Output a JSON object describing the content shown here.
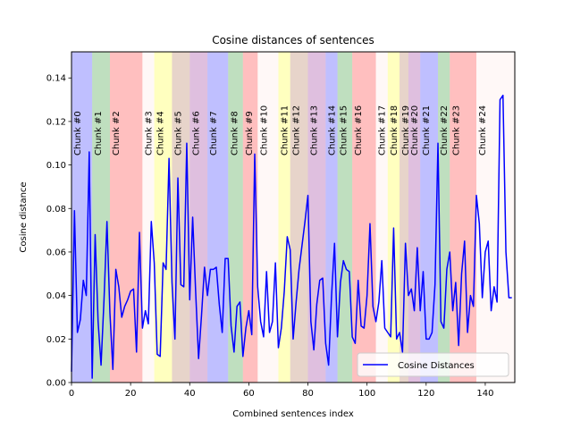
{
  "chart_data": {
    "type": "line",
    "title": "Cosine distances of sentences",
    "xlabel": "Combined sentences index",
    "ylabel": "Cosine distance",
    "xlim": [
      0,
      150
    ],
    "ylim": [
      0,
      0.152
    ],
    "x_ticks": [
      0,
      20,
      40,
      60,
      80,
      100,
      120,
      140
    ],
    "y_ticks": [
      0.0,
      0.02,
      0.04,
      0.06,
      0.08,
      0.1,
      0.12,
      0.14
    ],
    "x_tick_labels": [
      "0",
      "20",
      "40",
      "60",
      "80",
      "100",
      "120",
      "140"
    ],
    "y_tick_labels": [
      "0.00",
      "0.02",
      "0.04",
      "0.06",
      "0.08",
      "0.10",
      "0.12",
      "0.14"
    ],
    "grid": false,
    "legend": {
      "position": "lower-right",
      "entries": [
        "Cosine Distances"
      ]
    },
    "series": [
      {
        "name": "Cosine Distances",
        "color": "#0000ff",
        "values": [
          0.005,
          0.079,
          0.023,
          0.029,
          0.047,
          0.04,
          0.106,
          0.002,
          0.068,
          0.028,
          0.008,
          0.038,
          0.074,
          0.032,
          0.006,
          0.052,
          0.044,
          0.03,
          0.035,
          0.038,
          0.042,
          0.043,
          0.014,
          0.069,
          0.025,
          0.033,
          0.027,
          0.074,
          0.055,
          0.013,
          0.012,
          0.055,
          0.052,
          0.103,
          0.046,
          0.02,
          0.094,
          0.045,
          0.044,
          0.11,
          0.038,
          0.076,
          0.042,
          0.011,
          0.031,
          0.053,
          0.04,
          0.052,
          0.052,
          0.053,
          0.036,
          0.023,
          0.057,
          0.057,
          0.026,
          0.014,
          0.035,
          0.037,
          0.012,
          0.025,
          0.033,
          0.022,
          0.105,
          0.044,
          0.028,
          0.021,
          0.051,
          0.023,
          0.028,
          0.055,
          0.016,
          0.025,
          0.042,
          0.067,
          0.061,
          0.02,
          0.037,
          0.052,
          0.063,
          0.074,
          0.086,
          0.028,
          0.015,
          0.036,
          0.047,
          0.048,
          0.018,
          0.008,
          0.04,
          0.064,
          0.021,
          0.046,
          0.056,
          0.052,
          0.051,
          0.021,
          0.018,
          0.047,
          0.026,
          0.025,
          0.04,
          0.073,
          0.035,
          0.028,
          0.037,
          0.056,
          0.025,
          0.023,
          0.021,
          0.071,
          0.02,
          0.023,
          0.014,
          0.064,
          0.04,
          0.043,
          0.033,
          0.062,
          0.033,
          0.051,
          0.02,
          0.02,
          0.023,
          0.045,
          0.11,
          0.028,
          0.025,
          0.052,
          0.06,
          0.033,
          0.046,
          0.017,
          0.05,
          0.065,
          0.023,
          0.04,
          0.035,
          0.086,
          0.073,
          0.039,
          0.06,
          0.065,
          0.033,
          0.044,
          0.037,
          0.13,
          0.132,
          0.06,
          0.039,
          0.039
        ]
      }
    ],
    "chunks": [
      {
        "label": "Chunk #0",
        "start": 0,
        "end": 7,
        "color": "#0000ff"
      },
      {
        "label": "Chunk #1",
        "start": 7,
        "end": 13,
        "color": "#008000"
      },
      {
        "label": "Chunk #2",
        "start": 13,
        "end": 24,
        "color": "#ff0000"
      },
      {
        "label": "Chunk #3",
        "start": 24,
        "end": 28,
        "color": "#ffe4e1"
      },
      {
        "label": "Chunk #4",
        "start": 28,
        "end": 34,
        "color": "#ffff00"
      },
      {
        "label": "Chunk #5",
        "start": 34,
        "end": 40,
        "color": "#a0522d"
      },
      {
        "label": "Chunk #6",
        "start": 40,
        "end": 46,
        "color": "#800080"
      },
      {
        "label": "Chunk #7",
        "start": 46,
        "end": 53,
        "color": "#0000ff"
      },
      {
        "label": "Chunk #8",
        "start": 53,
        "end": 58,
        "color": "#008000"
      },
      {
        "label": "Chunk #9",
        "start": 58,
        "end": 63,
        "color": "#ff0000"
      },
      {
        "label": "Chunk #10",
        "start": 63,
        "end": 70,
        "color": "#ffe4e1"
      },
      {
        "label": "Chunk #11",
        "start": 70,
        "end": 74,
        "color": "#ffff00"
      },
      {
        "label": "Chunk #12",
        "start": 74,
        "end": 80,
        "color": "#a0522d"
      },
      {
        "label": "Chunk #13",
        "start": 80,
        "end": 86,
        "color": "#800080"
      },
      {
        "label": "Chunk #14",
        "start": 86,
        "end": 90,
        "color": "#0000ff"
      },
      {
        "label": "Chunk #15",
        "start": 90,
        "end": 95,
        "color": "#008000"
      },
      {
        "label": "Chunk #16",
        "start": 95,
        "end": 103,
        "color": "#ff0000"
      },
      {
        "label": "Chunk #17",
        "start": 103,
        "end": 107,
        "color": "#ffe4e1"
      },
      {
        "label": "Chunk #18",
        "start": 107,
        "end": 111,
        "color": "#ffff00"
      },
      {
        "label": "Chunk #19",
        "start": 111,
        "end": 114,
        "color": "#a0522d"
      },
      {
        "label": "Chunk #20",
        "start": 114,
        "end": 118,
        "color": "#800080"
      },
      {
        "label": "Chunk #21",
        "start": 118,
        "end": 124,
        "color": "#0000ff"
      },
      {
        "label": "Chunk #22",
        "start": 124,
        "end": 128,
        "color": "#008000"
      },
      {
        "label": "Chunk #23",
        "start": 128,
        "end": 137,
        "color": "#ff0000"
      },
      {
        "label": "Chunk #24",
        "start": 137,
        "end": 150,
        "color": "#ffe4e1"
      }
    ]
  }
}
